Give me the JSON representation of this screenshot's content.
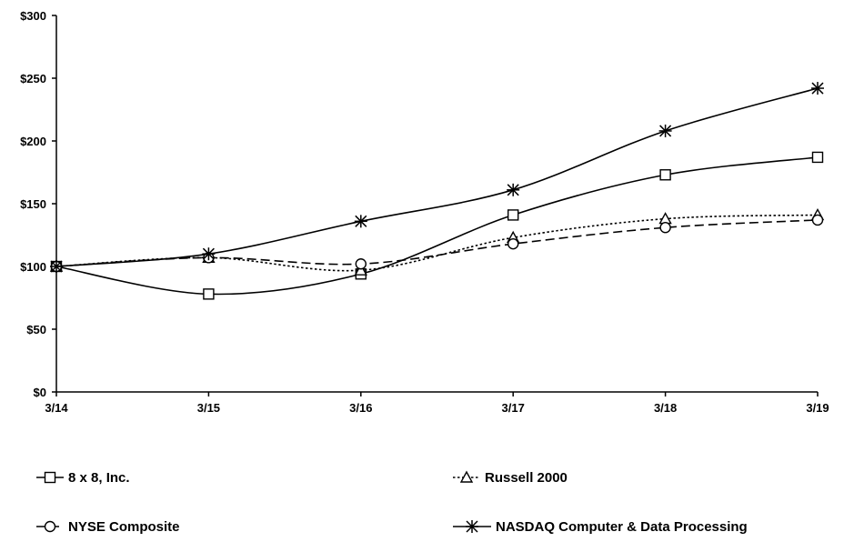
{
  "chart_data": {
    "type": "line",
    "x": [
      "3/14",
      "3/15",
      "3/16",
      "3/17",
      "3/18",
      "3/19"
    ],
    "ylim": [
      0,
      300
    ],
    "yticks": [
      0,
      50,
      100,
      150,
      200,
      250,
      300
    ],
    "ytick_labels": [
      "$0",
      "$50",
      "$100",
      "$150",
      "$200",
      "$250",
      "$300"
    ],
    "grid": false,
    "legend_position": "bottom",
    "series": [
      {
        "name": "8 x 8, Inc.",
        "values": [
          100,
          78,
          94,
          141,
          173,
          187
        ],
        "marker": "square",
        "dash": "solid",
        "color": "#000000"
      },
      {
        "name": "Russell 2000",
        "values": [
          100,
          107,
          97,
          123,
          138,
          141
        ],
        "marker": "triangle",
        "dash": "dotted",
        "color": "#000000"
      },
      {
        "name": "NYSE Composite",
        "values": [
          100,
          107,
          102,
          118,
          131,
          137
        ],
        "marker": "circle",
        "dash": "dashed",
        "color": "#000000"
      },
      {
        "name": "NASDAQ Computer & Data Processing",
        "values": [
          100,
          110,
          136,
          161,
          208,
          242
        ],
        "marker": "asterisk",
        "dash": "solid",
        "color": "#000000"
      }
    ]
  }
}
